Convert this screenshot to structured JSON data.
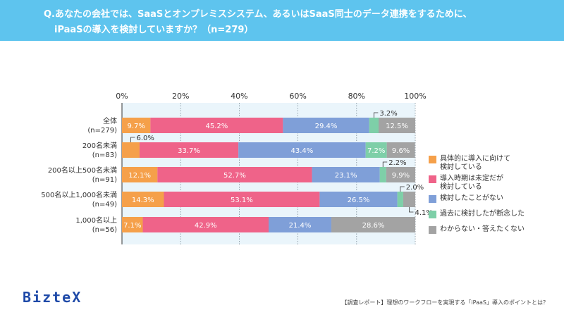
{
  "header": {
    "line1": "Q.あなたの会社では、SaaSとオンプレミスシステム、あるいはSaaS同士のデータ連携をするために、",
    "line2": "iPaaSの導入を検討していますか？（n=279）"
  },
  "chart_data": {
    "type": "bar",
    "orientation": "horizontal",
    "stacked": true,
    "xlim": [
      0,
      100
    ],
    "ticks": [
      "0%",
      "20%",
      "40%",
      "60%",
      "80%",
      "100%"
    ],
    "grid": true,
    "legend_position": "right",
    "categories": [
      {
        "line1": "全体",
        "line2": "(n=279)"
      },
      {
        "line1": "200名未満",
        "line2": "(n=83)"
      },
      {
        "line1": "200名以上500名未満",
        "line2": "(n=91)"
      },
      {
        "line1": "500名以上1,000名未満",
        "line2": "(n=49)"
      },
      {
        "line1": "1,000名以上",
        "line2": "(n=56)"
      }
    ],
    "series": [
      {
        "name": "具体的に導入に向けて\n検討している",
        "color": "#f5a04a",
        "values": [
          9.7,
          6.0,
          12.1,
          14.3,
          7.1
        ],
        "labels": [
          "9.7%",
          "6.0%",
          "12.1%",
          "14.3%",
          "7.1%"
        ]
      },
      {
        "name": "導入時期は未定だが\n検討している",
        "color": "#ef6389",
        "values": [
          45.2,
          33.7,
          52.7,
          53.1,
          42.9
        ],
        "labels": [
          "45.2%",
          "33.7%",
          "52.7%",
          "53.1%",
          "42.9%"
        ]
      },
      {
        "name": "検討したことがない",
        "color": "#7f9fd8",
        "values": [
          29.4,
          43.4,
          23.1,
          26.5,
          21.4
        ],
        "labels": [
          "29.4%",
          "43.4%",
          "23.1%",
          "26.5%",
          "21.4%"
        ]
      },
      {
        "name": "過去に検討したが断念した",
        "color": "#7ecfa8",
        "values": [
          3.2,
          7.2,
          2.2,
          2.0,
          0
        ],
        "labels": [
          "3.2%",
          "7.2%",
          "2.2%",
          "2.0%",
          ""
        ]
      },
      {
        "name": "わからない・答えたくない",
        "color": "#a3a3a3",
        "values": [
          12.5,
          9.6,
          9.9,
          4.1,
          28.6
        ],
        "labels": [
          "12.5%",
          "9.6%",
          "9.9%",
          "4.1%",
          "28.6%"
        ]
      }
    ]
  },
  "legend": [
    {
      "label": "具体的に導入に向けて\n検討している",
      "color": "#f5a04a"
    },
    {
      "label": "導入時期は未定だが\n検討している",
      "color": "#ef6389"
    },
    {
      "label": "検討したことがない",
      "color": "#7f9fd8"
    },
    {
      "label": "過去に検討したが断念した",
      "color": "#7ecfa8"
    },
    {
      "label": "わからない・答えたくない",
      "color": "#a3a3a3"
    }
  ],
  "logo": "BizteX",
  "footer": "【調査レポート】理想のワークフローを実現する「iPaaS」導入のポイントとは？"
}
